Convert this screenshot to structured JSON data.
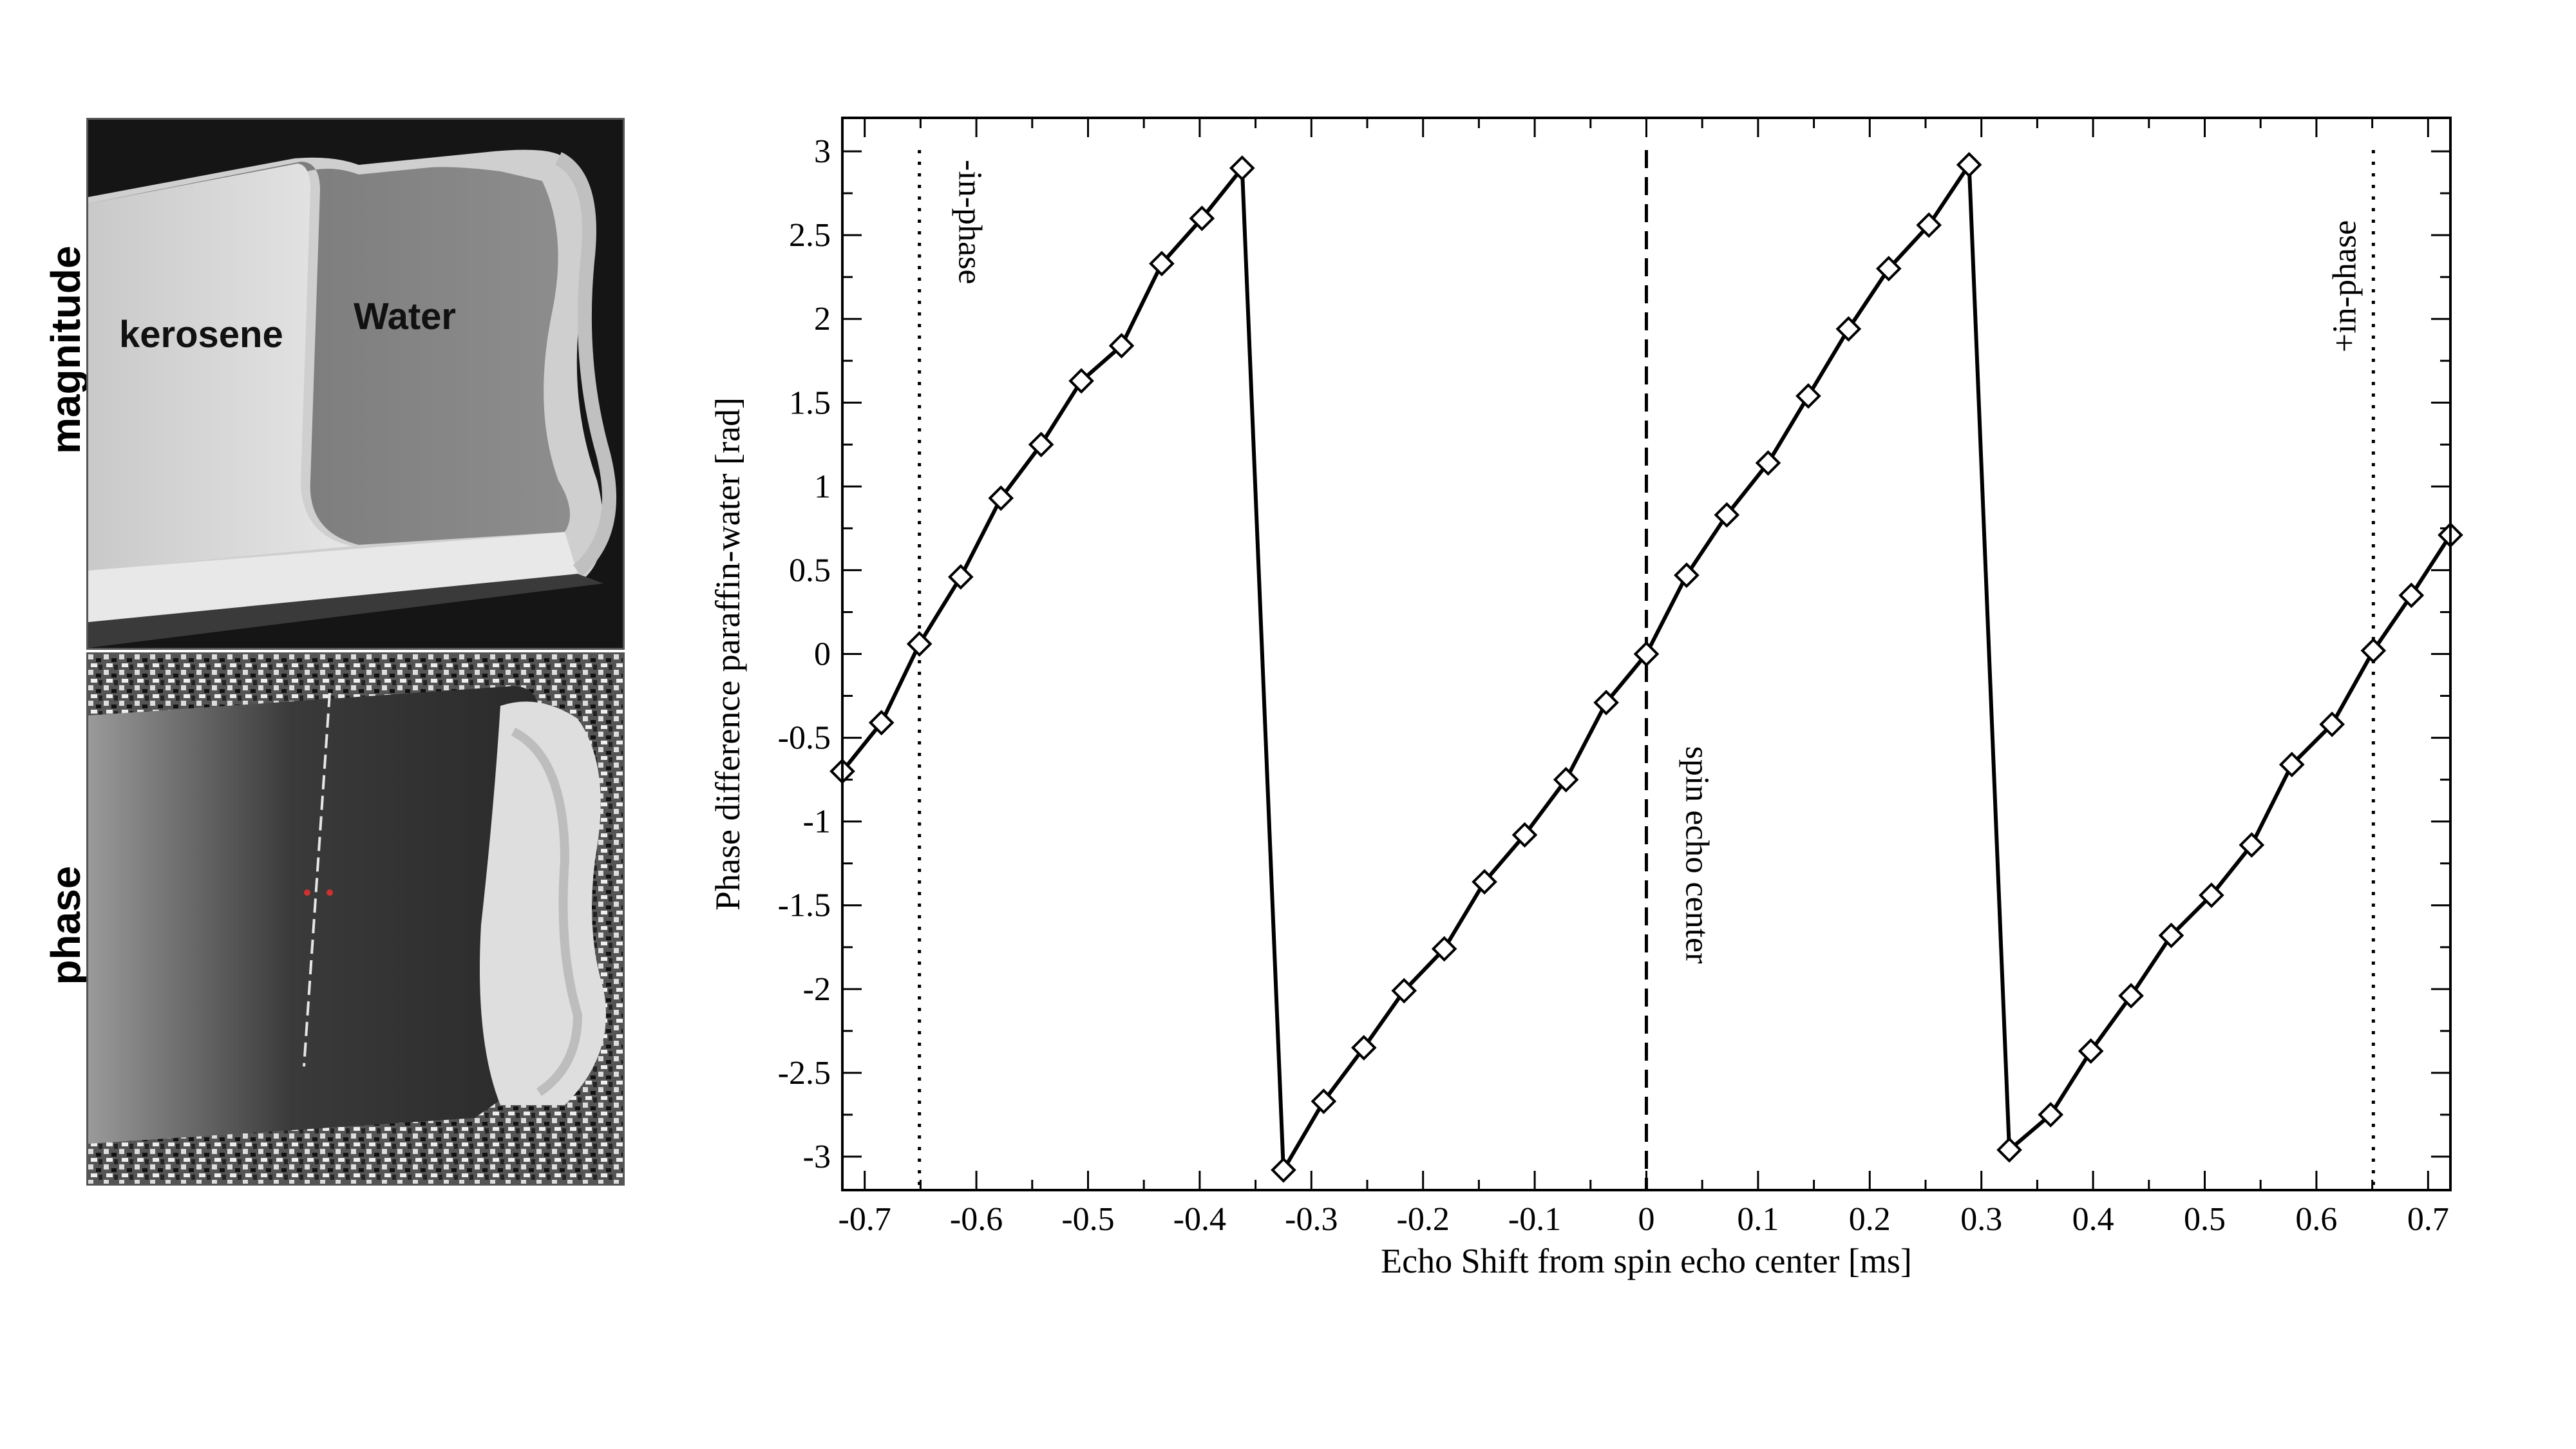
{
  "images": {
    "magnitude_label": "magnitude",
    "phase_label": "phase",
    "kerosene_label": "kerosene",
    "water_label": "Water"
  },
  "chart_data": {
    "type": "line",
    "xlabel": "Echo Shift from spin echo center [ms]",
    "ylabel": "Phase difference paraffin-water [rad]",
    "xlim": [
      -0.72,
      0.72
    ],
    "ylim": [
      -3.2,
      3.2
    ],
    "x_ticks": [
      -0.7,
      -0.6,
      -0.5,
      -0.4,
      -0.3,
      -0.2,
      -0.1,
      0,
      0.1,
      0.2,
      0.3,
      0.4,
      0.5,
      0.6,
      0.7
    ],
    "x_tick_labels": [
      "-0.7",
      "-0.6",
      "-0.5",
      "-0.4",
      "-0.3",
      "-0.2",
      "-0.1",
      "0",
      "0.1",
      "0.2",
      "0.3",
      "0.4",
      "0.5",
      "0.6",
      "0.7"
    ],
    "y_ticks": [
      -3,
      -2.5,
      -2,
      -1.5,
      -1,
      -0.5,
      0,
      0.5,
      1,
      1.5,
      2,
      2.5,
      3
    ],
    "y_tick_labels": [
      "-3",
      "-2.5",
      "-2",
      "-1.5",
      "-1",
      "-0.5",
      "0",
      "0.5",
      "1",
      "1.5",
      "2",
      "2.5",
      "3"
    ],
    "grid": false,
    "marker": "diamond",
    "series": [
      {
        "x": [
          -0.72,
          -0.685,
          -0.651,
          -0.614,
          -0.578,
          -0.542,
          -0.506,
          -0.47,
          -0.434,
          -0.398,
          -0.362,
          -0.325,
          -0.289,
          -0.253,
          -0.217,
          -0.181,
          -0.145,
          -0.109,
          -0.072,
          -0.036,
          0.0,
          0.036,
          0.072,
          0.109,
          0.145,
          0.181,
          0.217,
          0.253,
          0.289,
          0.325,
          0.362,
          0.398,
          0.434,
          0.47,
          0.506,
          0.542,
          0.578,
          0.614,
          0.651,
          0.685,
          0.72
        ],
        "y": [
          -0.7,
          -0.41,
          0.06,
          0.46,
          0.93,
          1.25,
          1.63,
          1.84,
          2.33,
          2.6,
          2.9,
          -3.08,
          -2.67,
          -2.35,
          -2.01,
          -1.76,
          -1.36,
          -1.08,
          -0.75,
          -0.29,
          0.0,
          0.47,
          0.83,
          1.14,
          1.54,
          1.94,
          2.3,
          2.56,
          2.92,
          -2.96,
          -2.75,
          -2.37,
          -2.04,
          -1.68,
          -1.44,
          -1.14,
          -0.66,
          -0.42,
          0.02,
          0.35,
          0.71
        ]
      }
    ],
    "reference_lines": [
      {
        "x": -0.651,
        "style": "dotted",
        "label": "-in-phase"
      },
      {
        "x": 0.0,
        "style": "dashed",
        "label": "spin echo center"
      },
      {
        "x": 0.651,
        "style": "dotted",
        "label": "+in-phase"
      }
    ]
  }
}
